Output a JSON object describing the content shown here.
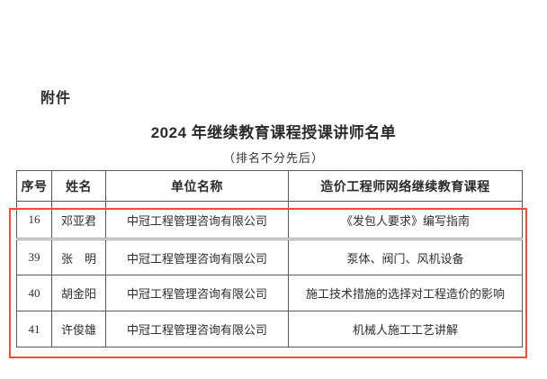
{
  "page": {
    "attachment_label": "附件",
    "title": "2024 年继续教育课程授课讲师名单",
    "subtitle": "（排名不分先后）"
  },
  "table": {
    "headers": [
      "序号",
      "姓名",
      "单位名称",
      "造价工程师网络继续教育课程"
    ],
    "rows": [
      {
        "no": "16",
        "name": "邓亚君",
        "unit": "中冠工程管理咨询有限公司",
        "course": "《发包人要求》编写指南"
      },
      {
        "no": "39",
        "name": "张　明",
        "unit": "中冠工程管理咨询有限公司",
        "course": "泵体、阀门、风机设备"
      },
      {
        "no": "40",
        "name": "胡金阳",
        "unit": "中冠工程管理咨询有限公司",
        "course": "施工技术措施的选择对工程造价的影响"
      },
      {
        "no": "41",
        "name": "许俊雄",
        "unit": "中冠工程管理咨询有限公司",
        "course": "机械人施工工艺讲解"
      }
    ]
  },
  "annotation": {
    "highlight_color": "#ff4a2b"
  }
}
